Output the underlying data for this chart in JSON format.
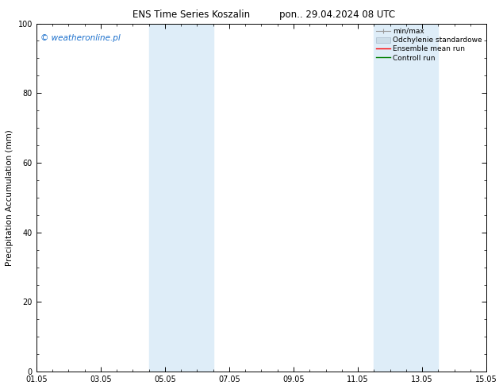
{
  "title_left": "ENS Time Series Koszalin",
  "title_right": "pon.. 29.04.2024 08 UTC",
  "ylabel": "Precipitation Accumulation (mm)",
  "watermark": "© weatheronline.pl",
  "watermark_color": "#1a6fcc",
  "ylim": [
    0,
    100
  ],
  "xlim_start": 0.0,
  "xlim_end": 14.0,
  "xtick_positions": [
    0,
    2,
    4,
    6,
    8,
    10,
    12,
    14
  ],
  "xtick_labels": [
    "01.05",
    "03.05",
    "05.05",
    "07.05",
    "09.05",
    "11.05",
    "13.05",
    "15.05"
  ],
  "ytick_positions": [
    0,
    20,
    40,
    60,
    80,
    100
  ],
  "shaded_regions": [
    {
      "x_start": 3.5,
      "x_end": 5.5,
      "color": "#deedf8"
    },
    {
      "x_start": 10.5,
      "x_end": 12.5,
      "color": "#deedf8"
    }
  ],
  "legend_labels": [
    "min/max",
    "Odchylenie standardowe",
    "Ensemble mean run",
    "Controll run"
  ],
  "legend_colors": [
    "#aaaaaa",
    "#ccdde8",
    "red",
    "green"
  ],
  "background_color": "#ffffff",
  "plot_bg_color": "#ffffff",
  "tick_color": "#000000",
  "title_fontsize": 8.5,
  "label_fontsize": 7.5,
  "tick_fontsize": 7.0,
  "legend_fontsize": 6.5,
  "watermark_fontsize": 7.5
}
